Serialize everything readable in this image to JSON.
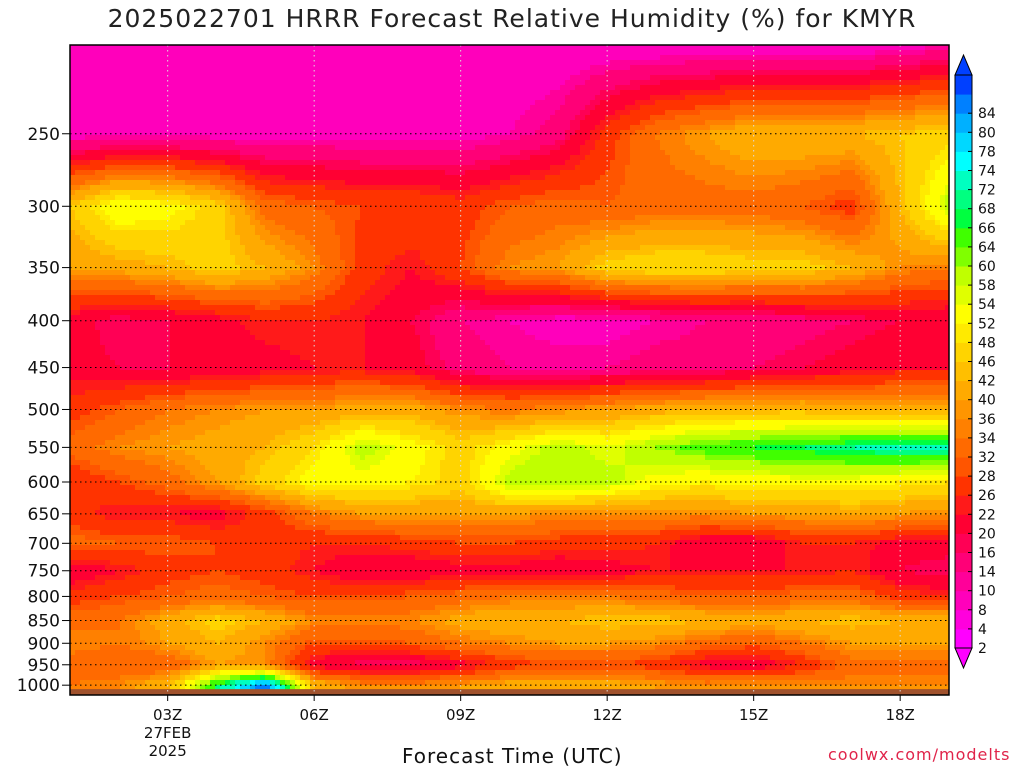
{
  "title": "2025022701 HRRR Forecast Relative Humidity (%) for KMYR",
  "credit": "coolwx.com/modelts",
  "chart_data": {
    "type": "heatmap",
    "title": "2025022701 HRRR Forecast Relative Humidity (%) for KMYR",
    "xlabel": "Forecast Time (UTC)",
    "ylabel": "",
    "x_hours": [
      1,
      2,
      3,
      4,
      5,
      6,
      7,
      8,
      9,
      10,
      11,
      12,
      13,
      14,
      15,
      16,
      17,
      18,
      19
    ],
    "x_ticks": [
      {
        "hour": 3,
        "label": "03Z",
        "sub": [
          "27FEB",
          "2025"
        ]
      },
      {
        "hour": 6,
        "label": "06Z",
        "sub": []
      },
      {
        "hour": 9,
        "label": "09Z",
        "sub": []
      },
      {
        "hour": 12,
        "label": "12Z",
        "sub": []
      },
      {
        "hour": 15,
        "label": "15Z",
        "sub": []
      },
      {
        "hour": 18,
        "label": "18Z",
        "sub": []
      }
    ],
    "x_range": [
      1,
      19
    ],
    "y_levels": [
      1000,
      950,
      900,
      850,
      800,
      750,
      700,
      650,
      600,
      550,
      500,
      450,
      400,
      350,
      300,
      250,
      200
    ],
    "y_ticks": [
      1000,
      950,
      900,
      850,
      800,
      750,
      700,
      650,
      600,
      550,
      500,
      450,
      400,
      350,
      300,
      250
    ],
    "y_range": [
      1025,
      200
    ],
    "y_scale": "log-pressure",
    "grid": true,
    "values": [
      [
        32,
        34,
        40,
        66,
        84,
        40,
        34,
        34,
        36,
        38,
        38,
        38,
        36,
        34,
        36,
        34,
        34,
        34,
        34
      ],
      [
        30,
        28,
        28,
        36,
        34,
        18,
        14,
        14,
        18,
        24,
        26,
        26,
        24,
        18,
        16,
        22,
        30,
        30,
        30
      ],
      [
        34,
        32,
        36,
        40,
        34,
        26,
        26,
        28,
        32,
        34,
        36,
        36,
        34,
        30,
        28,
        32,
        36,
        36,
        36
      ],
      [
        30,
        32,
        38,
        44,
        40,
        34,
        34,
        34,
        38,
        40,
        40,
        42,
        42,
        40,
        38,
        40,
        42,
        40,
        40
      ],
      [
        24,
        26,
        28,
        30,
        28,
        26,
        26,
        28,
        30,
        32,
        32,
        32,
        30,
        28,
        28,
        30,
        30,
        24,
        22
      ],
      [
        16,
        20,
        24,
        26,
        24,
        20,
        16,
        16,
        18,
        18,
        16,
        18,
        20,
        20,
        20,
        20,
        22,
        16,
        14
      ],
      [
        30,
        28,
        28,
        26,
        24,
        22,
        22,
        24,
        26,
        26,
        24,
        24,
        22,
        16,
        16,
        22,
        22,
        18,
        18
      ],
      [
        24,
        20,
        20,
        18,
        24,
        32,
        36,
        36,
        36,
        36,
        34,
        34,
        34,
        34,
        36,
        36,
        38,
        36,
        34
      ],
      [
        22,
        26,
        30,
        36,
        44,
        50,
        50,
        48,
        44,
        56,
        58,
        56,
        50,
        48,
        50,
        50,
        50,
        48,
        46
      ],
      [
        30,
        34,
        36,
        38,
        40,
        46,
        56,
        50,
        44,
        50,
        56,
        52,
        58,
        62,
        64,
        66,
        68,
        70,
        70
      ],
      [
        24,
        28,
        32,
        34,
        36,
        36,
        38,
        38,
        34,
        32,
        34,
        36,
        38,
        40,
        40,
        40,
        38,
        38,
        38
      ],
      [
        18,
        16,
        16,
        16,
        18,
        20,
        20,
        18,
        12,
        10,
        10,
        10,
        12,
        12,
        14,
        16,
        18,
        20,
        20
      ],
      [
        18,
        14,
        16,
        18,
        22,
        22,
        20,
        16,
        10,
        8,
        6,
        6,
        8,
        10,
        10,
        12,
        14,
        16,
        16
      ],
      [
        36,
        38,
        40,
        44,
        40,
        34,
        24,
        20,
        26,
        34,
        36,
        44,
        46,
        46,
        44,
        44,
        40,
        34,
        32
      ],
      [
        42,
        52,
        50,
        44,
        30,
        28,
        26,
        26,
        24,
        28,
        30,
        28,
        30,
        30,
        30,
        28,
        24,
        40,
        56
      ],
      [
        6,
        6,
        6,
        6,
        6,
        6,
        6,
        6,
        6,
        8,
        12,
        24,
        32,
        36,
        40,
        40,
        40,
        42,
        44
      ],
      [
        4,
        4,
        4,
        4,
        4,
        4,
        4,
        6,
        6,
        4,
        4,
        4,
        4,
        4,
        4,
        4,
        4,
        6,
        8
      ]
    ],
    "colorbar": {
      "levels": [
        2,
        4,
        8,
        10,
        14,
        16,
        20,
        22,
        26,
        28,
        32,
        34,
        36,
        40,
        42,
        46,
        48,
        52,
        54,
        58,
        60,
        64,
        66,
        68,
        72,
        74,
        78,
        80,
        84
      ],
      "labels": [
        "84",
        "80",
        "78",
        "74",
        "72",
        "68",
        "66",
        "64",
        "60",
        "58",
        "54",
        "52",
        "48",
        "46",
        "42",
        "40",
        "36",
        "34",
        "32",
        "28",
        "26",
        "22",
        "20",
        "16",
        "14",
        "10",
        "8",
        "4",
        "2"
      ],
      "colors": [
        "#ff00ff",
        "#ff00dd",
        "#ff00bb",
        "#ff0099",
        "#ff0077",
        "#ff0055",
        "#ff0033",
        "#ff1a1a",
        "#ff3300",
        "#ff5500",
        "#ff6a00",
        "#ff8000",
        "#ff9500",
        "#ffaa00",
        "#ffbf00",
        "#ffd400",
        "#ffea00",
        "#ffff00",
        "#e0ff00",
        "#c0ff00",
        "#80ff00",
        "#40ff00",
        "#00ff40",
        "#00ff80",
        "#00ffc0",
        "#00ffff",
        "#00d8ff",
        "#00b0ff",
        "#0080ff",
        "#0040ff"
      ]
    },
    "surface_color": "#a0522d"
  }
}
